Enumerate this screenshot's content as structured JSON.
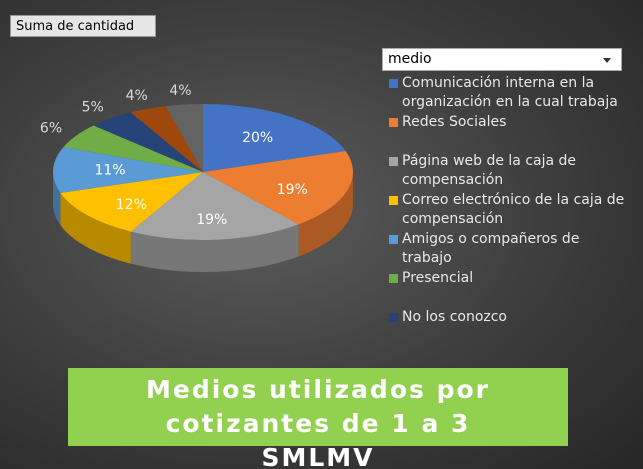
{
  "chart_data": {
    "type": "pie",
    "title": "Medios utilizados por cotizantes de 1 a 3 SMLMV",
    "field_button": "Suma de cantidad",
    "legend_title": "medio",
    "categories": [
      "Comunicación interna en la organización en la cual trabaja",
      "Redes Sociales",
      "Página web de la caja de compensación",
      "Correo electrónico de la caja de compensación",
      "Amigos o compañeros de trabajo",
      "Presencial",
      "No los conozco",
      null,
      null
    ],
    "values": [
      20,
      19,
      19,
      12,
      11,
      6,
      5,
      4,
      4
    ],
    "value_labels": [
      "20%",
      "19%",
      "19%",
      "12%",
      "11%",
      "6%",
      "5%",
      "4%",
      "4%"
    ],
    "colors": [
      "#4472c4",
      "#ed7d31",
      "#a5a5a5",
      "#ffc000",
      "#5b9bd5",
      "#70ad47",
      "#264478",
      "#9e480e",
      "#636363"
    ]
  }
}
